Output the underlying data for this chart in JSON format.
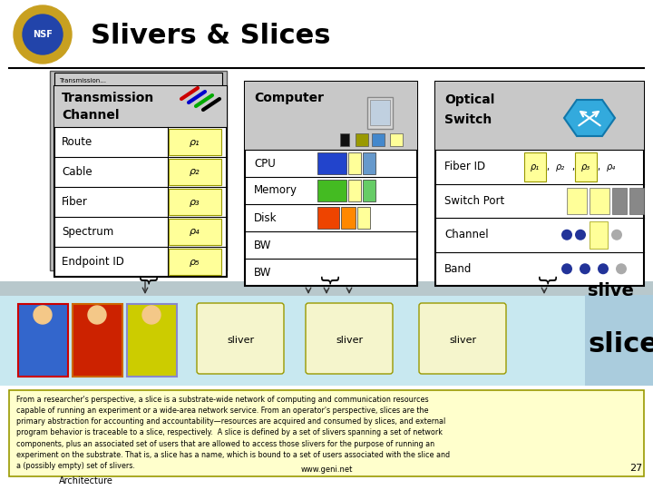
{
  "title": "Slivers & Slices",
  "bg_color": "#ffffff",
  "yellow": "#ffff99",
  "gray": "#c8c8c8",
  "transmission_rows": [
    "Route",
    "Cable",
    "Fiber",
    "Spectrum",
    "Endpoint ID"
  ],
  "rho_labels": [
    "ρ₁",
    "ρ₂",
    "ρ₃",
    "ρ₄",
    "ρ₅"
  ],
  "computer_rows": [
    "CPU",
    "Memory",
    "Disk",
    "BW"
  ],
  "optical_rows": [
    "Fiber ID",
    "Switch Port",
    "Channel",
    "Band"
  ],
  "fiber_id_labels": [
    "ρ₁",
    "ρ₂",
    "ρ₃",
    "ρ₄"
  ],
  "fiber_id_highlighted": [
    true,
    false,
    true,
    false
  ],
  "sliver_labels": [
    "sliver",
    "sliver",
    "sliver"
  ],
  "text_body": "From a researcher's perspective, a slice is a substrate-wide network of computing and communication resources\ncapable of running an experiment or a wide-area network service. From an operator's perspective, slices are the\nprimary abstraction for accounting and accountability—resources are acquired and consumed by slices, and external\nprogram behavior is traceable to a slice, respectively.  A slice is defined by a set of slivers spanning a set of network\ncomponents, plus an associated set of users that are allowed to access those slivers for the purpose of running an\nexperiment on the substrate. That is, a slice has a name, which is bound to a set of users associated with the slice and\na (possibly empty) set of slivers.",
  "url": "www.geni.net",
  "page_num": "27",
  "footer": "Architecture"
}
